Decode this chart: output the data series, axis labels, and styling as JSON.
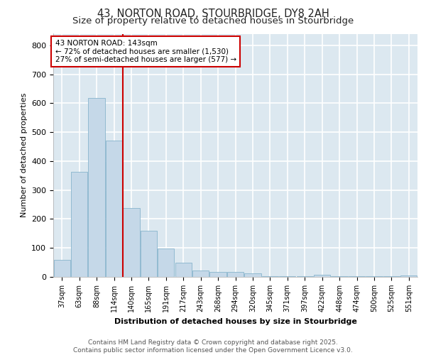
{
  "title_line1": "43, NORTON ROAD, STOURBRIDGE, DY8 2AH",
  "title_line2": "Size of property relative to detached houses in Stourbridge",
  "xlabel": "Distribution of detached houses by size in Stourbridge",
  "ylabel": "Number of detached properties",
  "categories": [
    "37sqm",
    "63sqm",
    "88sqm",
    "114sqm",
    "140sqm",
    "165sqm",
    "191sqm",
    "217sqm",
    "243sqm",
    "268sqm",
    "294sqm",
    "320sqm",
    "345sqm",
    "371sqm",
    "397sqm",
    "422sqm",
    "448sqm",
    "474sqm",
    "500sqm",
    "525sqm",
    "551sqm"
  ],
  "values": [
    60,
    362,
    617,
    472,
    237,
    160,
    99,
    48,
    22,
    18,
    16,
    13,
    2,
    2,
    2,
    8,
    2,
    2,
    2,
    2,
    4
  ],
  "bar_color": "#c5d8e8",
  "bar_edgecolor": "#88b4cc",
  "vline_color": "#cc0000",
  "vline_index": 4,
  "annotation_text": "43 NORTON ROAD: 143sqm\n← 72% of detached houses are smaller (1,530)\n27% of semi-detached houses are larger (577) →",
  "annotation_box_color": "#ffffff",
  "annotation_box_edgecolor": "#cc0000",
  "ylim": [
    0,
    840
  ],
  "yticks": [
    0,
    100,
    200,
    300,
    400,
    500,
    600,
    700,
    800
  ],
  "background_color": "#dce8f0",
  "grid_color": "#ffffff",
  "footer_line1": "Contains HM Land Registry data © Crown copyright and database right 2025.",
  "footer_line2": "Contains public sector information licensed under the Open Government Licence v3.0.",
  "title_fontsize": 10.5,
  "subtitle_fontsize": 9.5,
  "annotation_fontsize": 7.5,
  "axis_label_fontsize": 8,
  "tick_fontsize": 7,
  "footer_fontsize": 6.5
}
